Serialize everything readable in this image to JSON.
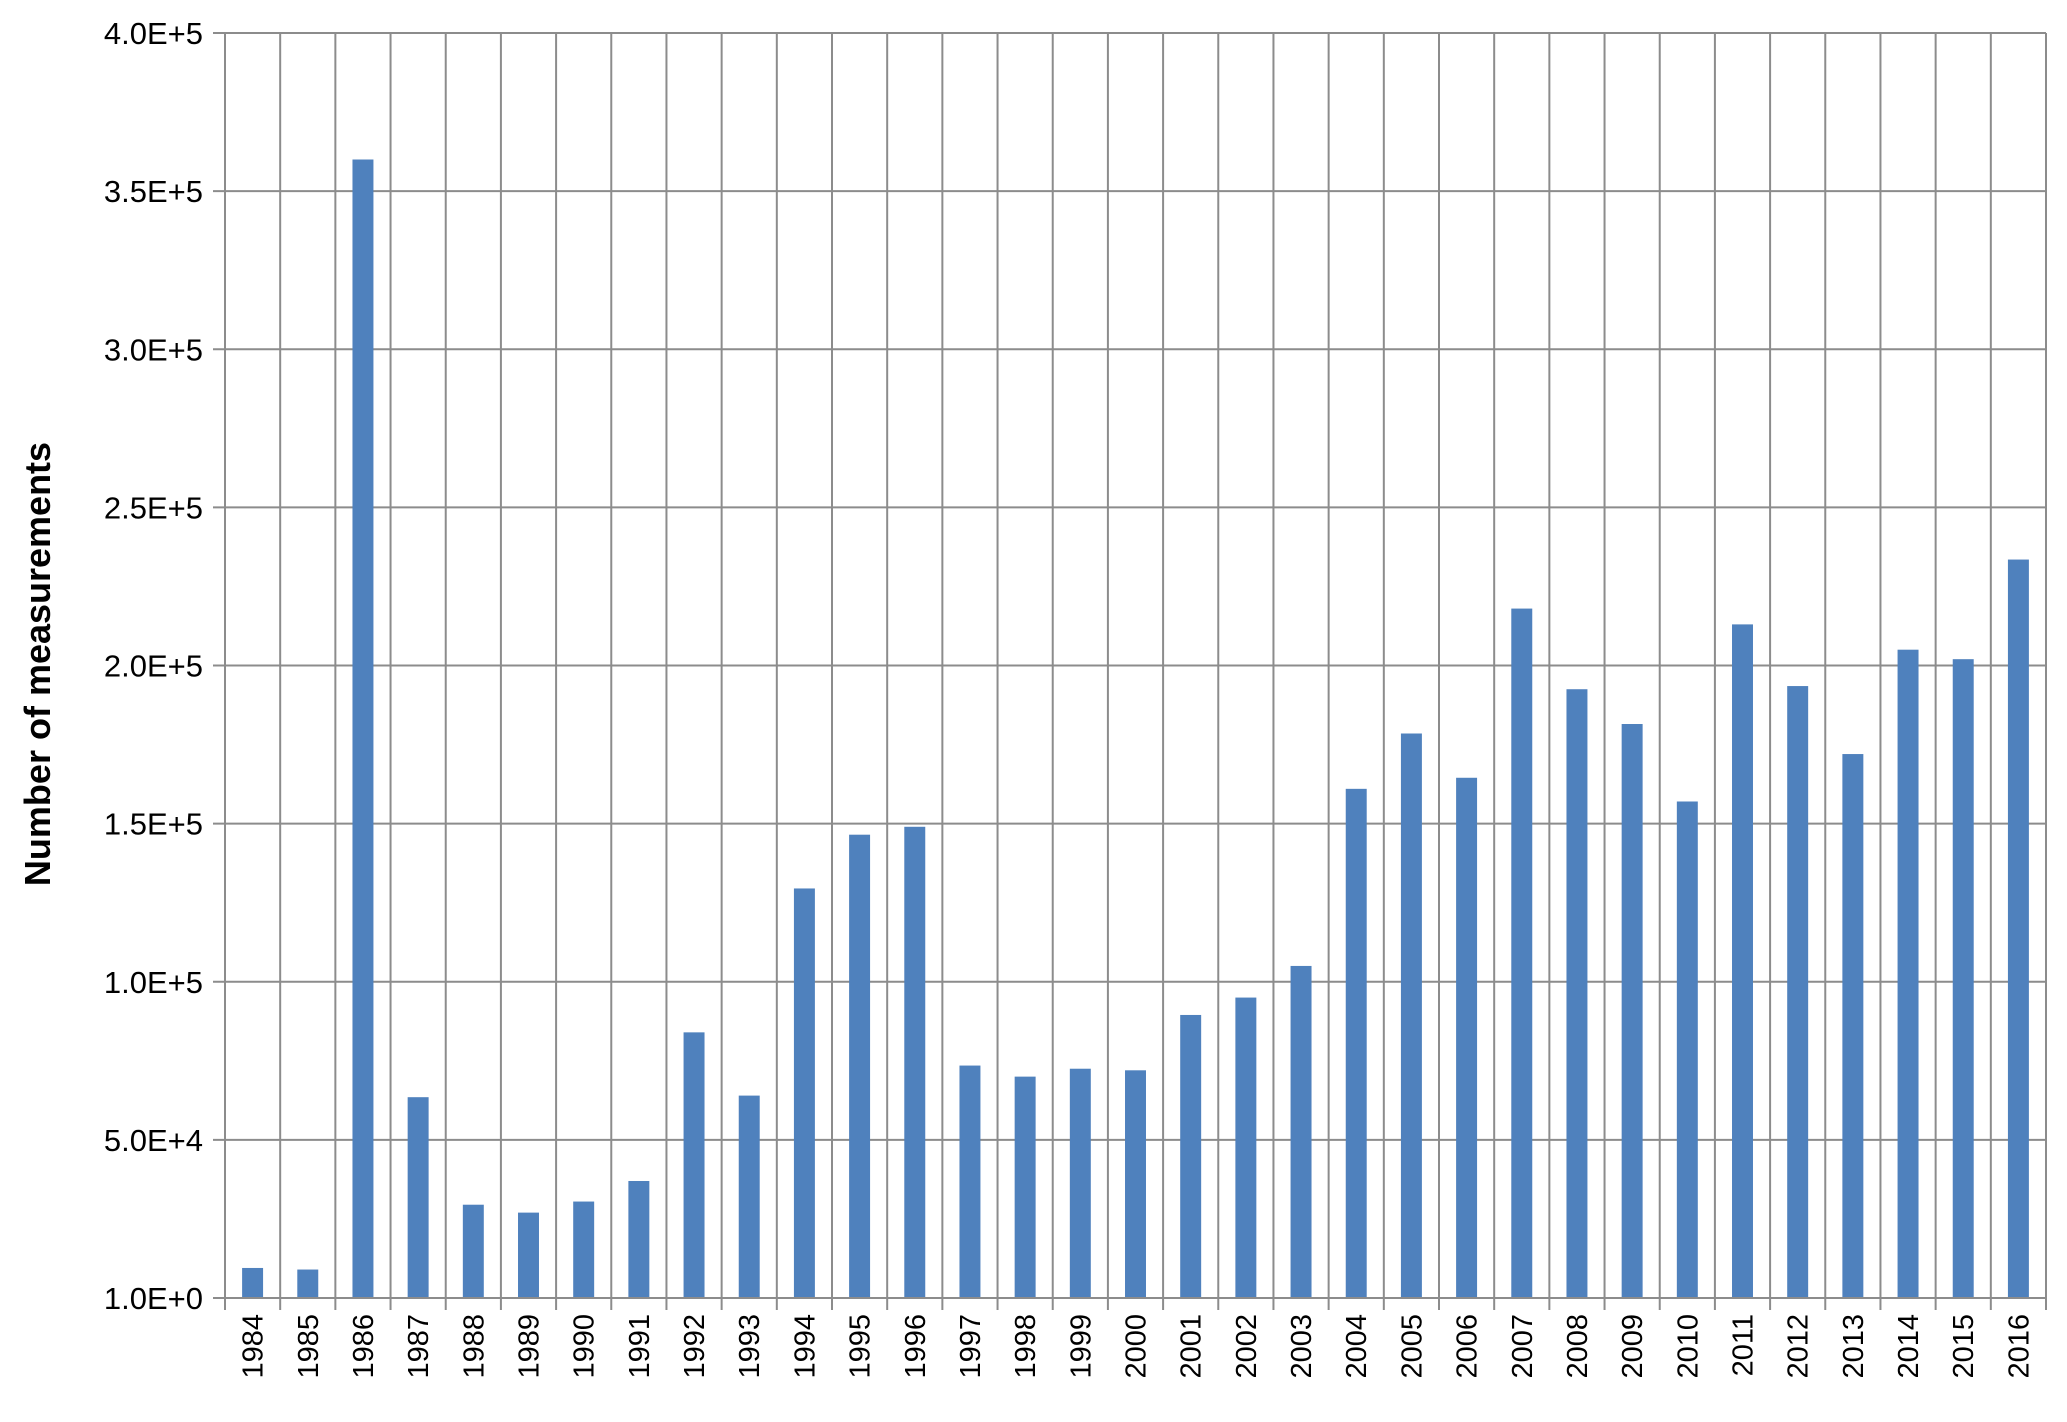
{
  "chart_data": {
    "type": "bar",
    "title": "",
    "xlabel": "",
    "ylabel": "Number of measurements",
    "ylim": [
      1,
      400000
    ],
    "y_tick_values": [
      1,
      50000,
      100000,
      150000,
      200000,
      250000,
      300000,
      350000,
      400000
    ],
    "y_tick_labels": [
      "1.0E+0",
      "5.0E+4",
      "1.0E+5",
      "1.5E+5",
      "2.0E+5",
      "2.5E+5",
      "3.0E+5",
      "3.5E+5",
      "4.0E+5"
    ],
    "grid": true,
    "legend": "none",
    "bar_color": "#4f81bd",
    "grid_color": "#8c8c8c",
    "categories": [
      "1984",
      "1985",
      "1986",
      "1987",
      "1988",
      "1989",
      "1990",
      "1991",
      "1992",
      "1993",
      "1994",
      "1995",
      "1996",
      "1997",
      "1998",
      "1999",
      "2000",
      "2001",
      "2002",
      "2003",
      "2004",
      "2005",
      "2006",
      "2007",
      "2008",
      "2009",
      "2010",
      "2011",
      "2012",
      "2013",
      "2014",
      "2015",
      "2016"
    ],
    "values": [
      9500,
      9000,
      360000,
      63500,
      29500,
      27000,
      30500,
      37000,
      84000,
      64000,
      129500,
      146500,
      149000,
      73500,
      70000,
      72500,
      72000,
      89500,
      95000,
      105000,
      161000,
      178500,
      164500,
      218000,
      192500,
      181500,
      157000,
      213000,
      193500,
      172000,
      205000,
      202000,
      233500
    ]
  }
}
